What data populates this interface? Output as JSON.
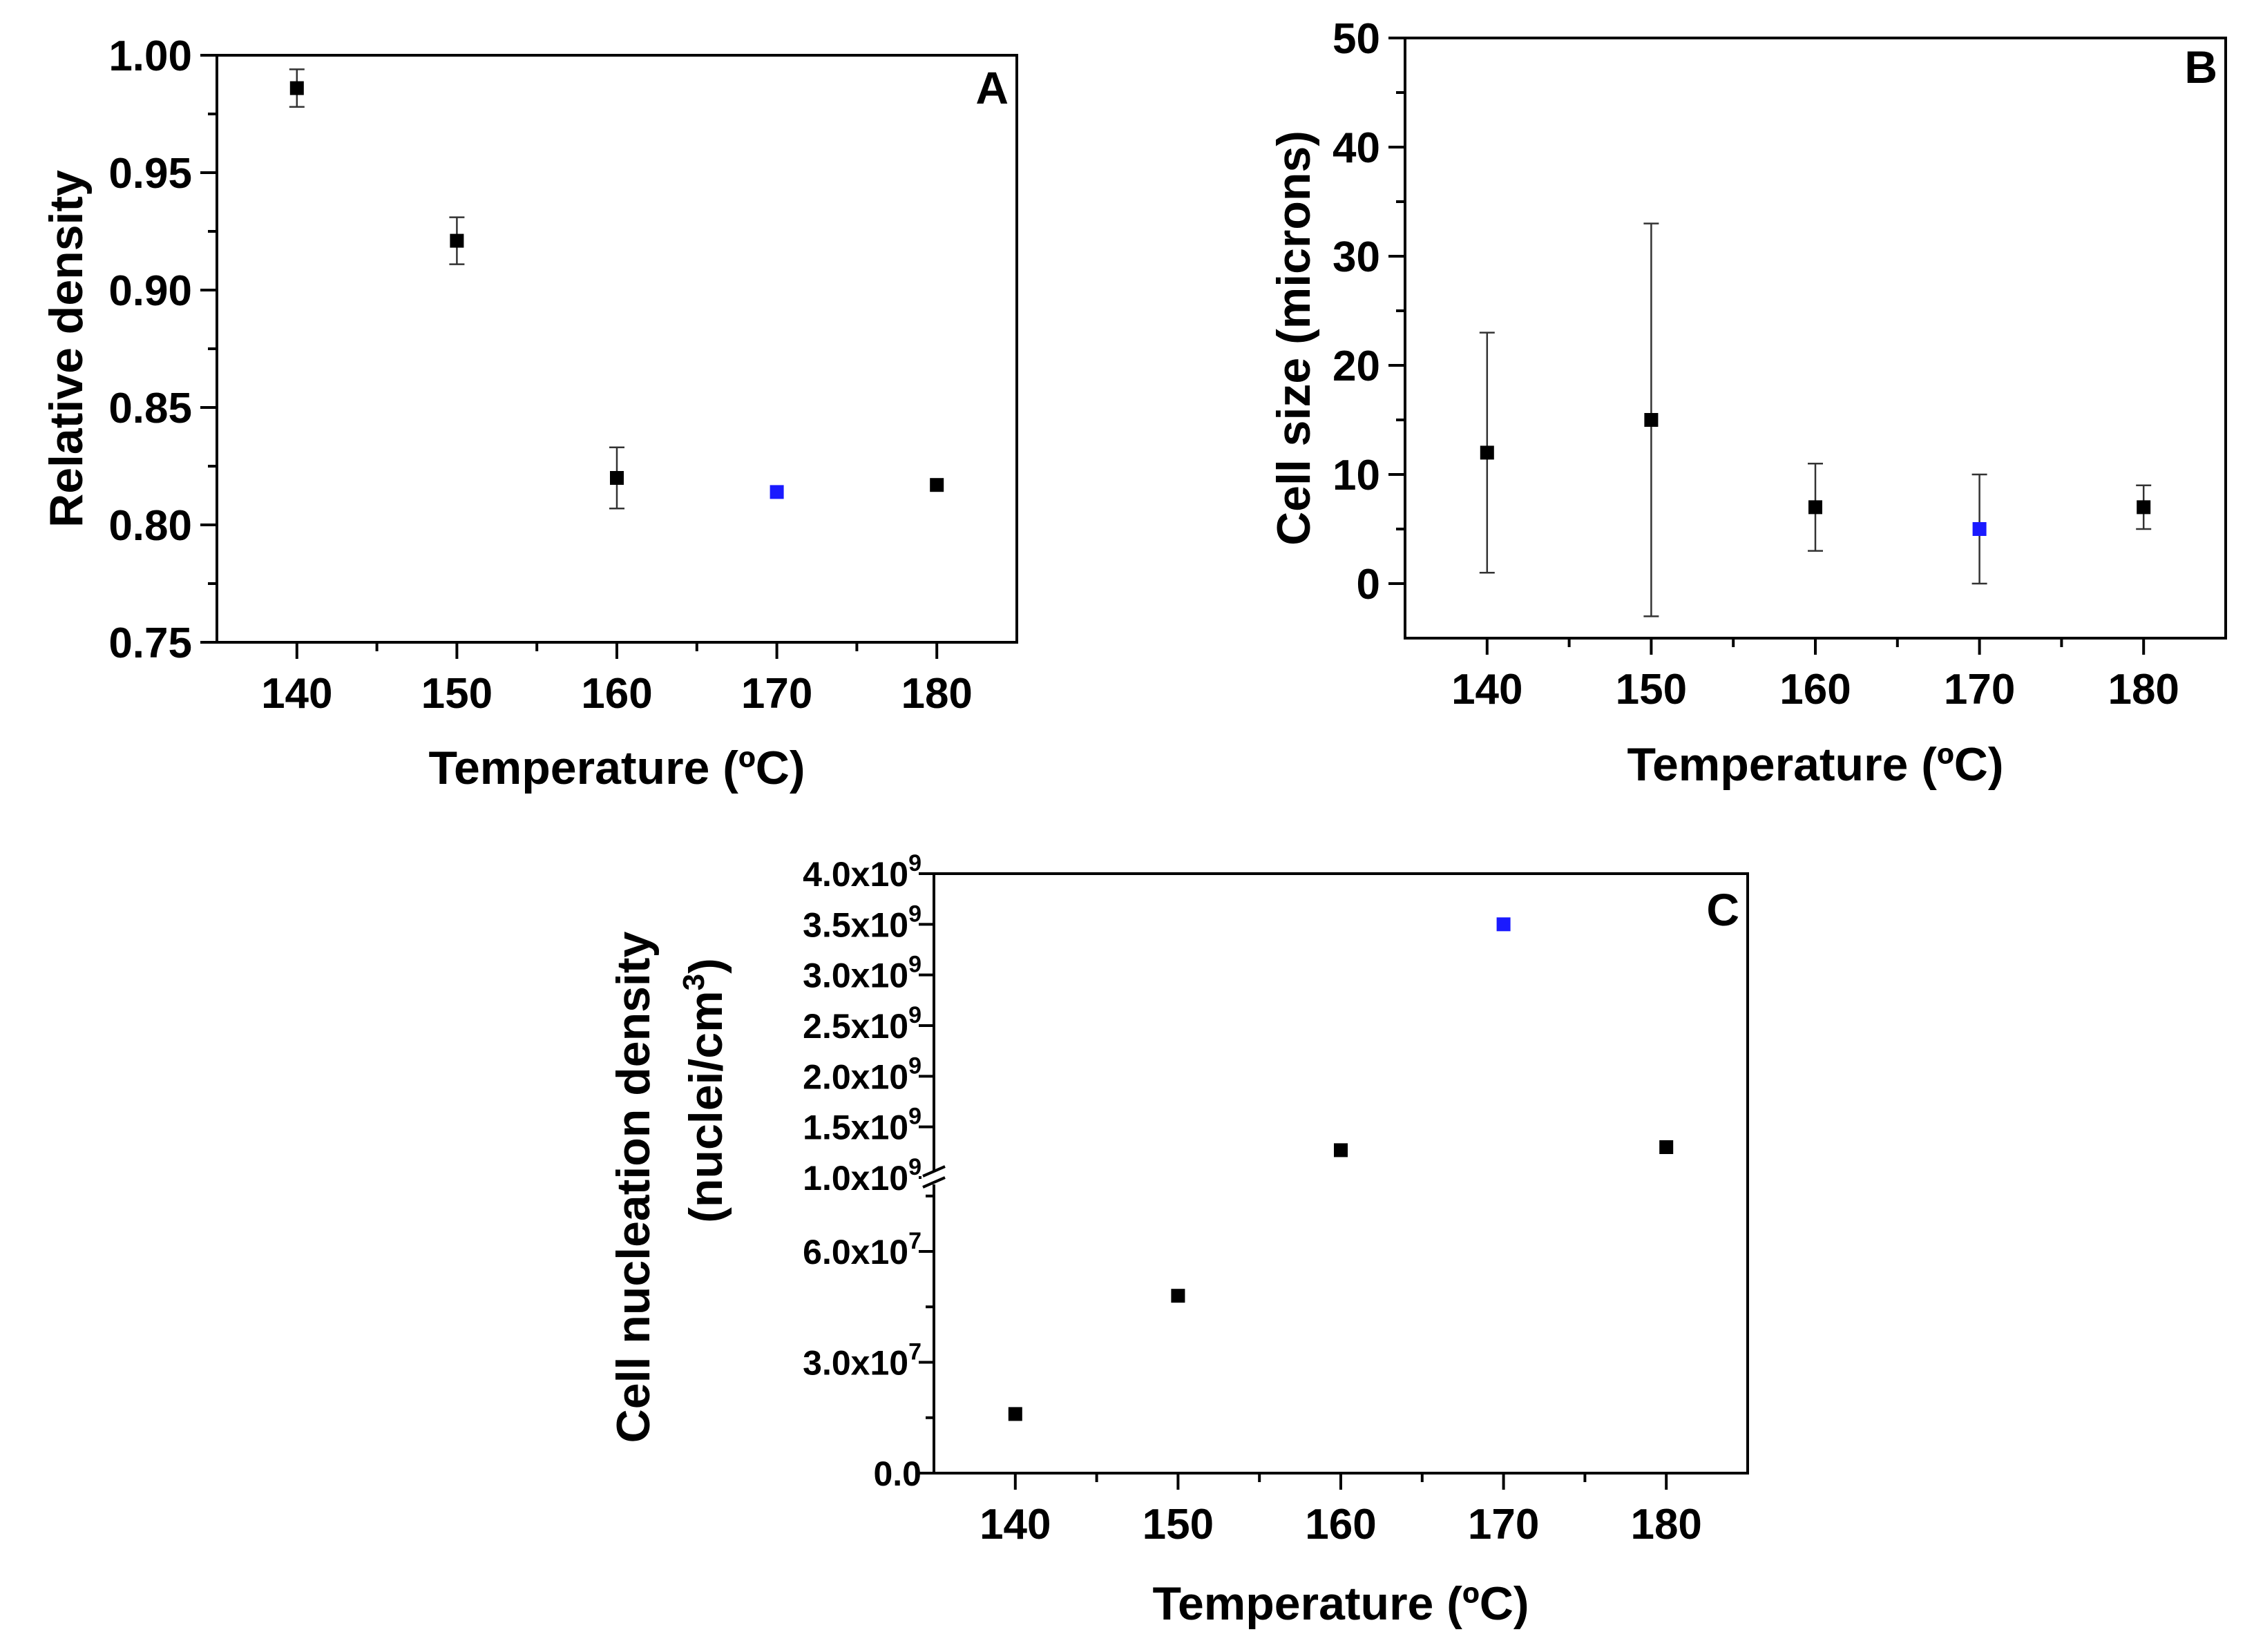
{
  "chart_data": [
    {
      "panel": "A",
      "type": "scatter",
      "xlabel": "Temperature (ºC)",
      "ylabel": "Relative density",
      "xlim": [
        135,
        185
      ],
      "ylim": [
        0.75,
        1.0
      ],
      "xticks": [
        "140",
        "150",
        "160",
        "170",
        "180"
      ],
      "yticks": [
        "0.75",
        "0.80",
        "0.85",
        "0.90",
        "0.95",
        "1.00"
      ],
      "x": [
        140,
        150,
        160,
        170,
        180
      ],
      "values": [
        0.986,
        0.921,
        0.82,
        0.814,
        0.817
      ],
      "errors": [
        0.008,
        0.01,
        0.013,
        0,
        0
      ],
      "colors": [
        "#000000",
        "#000000",
        "#000000",
        "#1a1aff",
        "#000000"
      ]
    },
    {
      "panel": "B",
      "type": "scatter",
      "xlabel": "Temperature (ºC)",
      "ylabel": "Cell size (microns)",
      "xlim": [
        135,
        185
      ],
      "ylim": [
        -5,
        50
      ],
      "xticks": [
        "140",
        "150",
        "160",
        "170",
        "180"
      ],
      "yticks": [
        "0",
        "10",
        "20",
        "30",
        "40",
        "50"
      ],
      "x": [
        140,
        150,
        160,
        170,
        180
      ],
      "values": [
        12,
        15,
        7,
        5,
        7
      ],
      "errors": [
        11,
        18,
        4,
        5,
        2
      ],
      "colors": [
        "#000000",
        "#000000",
        "#000000",
        "#1a1aff",
        "#000000"
      ]
    },
    {
      "panel": "C",
      "type": "scatter",
      "xlabel": "Temperature (ºC)",
      "ylabel": "Cell nucleation density",
      "ylabel2": "(nuclei/cm",
      "ylabel2_sup": "3",
      "ylabel2_end": ")",
      "axis_break": true,
      "xlim": [
        135,
        185
      ],
      "ylim_lower": [
        0,
        80000000
      ],
      "ylim_upper": [
        1000000000,
        4000000000
      ],
      "xticks": [
        "140",
        "150",
        "160",
        "170",
        "180"
      ],
      "yticks_lower": [
        {
          "value": 0,
          "mantissa": "0.0",
          "exp": ""
        },
        {
          "value": 30000000,
          "mantissa": "3.0x10",
          "exp": "7"
        },
        {
          "value": 60000000,
          "mantissa": "6.0x10",
          "exp": "7"
        }
      ],
      "yticks_upper": [
        {
          "value": 1000000000,
          "mantissa": "1.0x10",
          "exp": "9"
        },
        {
          "value": 1500000000,
          "mantissa": "1.5x10",
          "exp": "9"
        },
        {
          "value": 2000000000,
          "mantissa": "2.0x10",
          "exp": "9"
        },
        {
          "value": 2500000000,
          "mantissa": "2.5x10",
          "exp": "9"
        },
        {
          "value": 3000000000,
          "mantissa": "3.0x10",
          "exp": "9"
        },
        {
          "value": 3500000000,
          "mantissa": "3.5x10",
          "exp": "9"
        },
        {
          "value": 4000000000,
          "mantissa": "4.0x10",
          "exp": "9"
        }
      ],
      "x": [
        140,
        150,
        160,
        170,
        180
      ],
      "values": [
        16000000,
        48000000,
        1270000000,
        3500000000,
        1300000000
      ],
      "colors": [
        "#000000",
        "#000000",
        "#000000",
        "#1a1aff",
        "#000000"
      ]
    }
  ]
}
